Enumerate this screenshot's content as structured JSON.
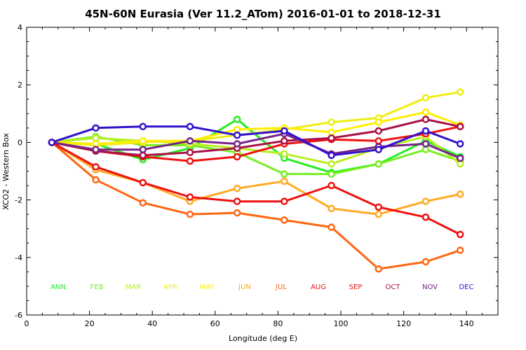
{
  "chart_data": {
    "type": "line",
    "title": "45N-60N Eurasia (Ver 11.2_ATom)   2016-01-01 to 2018-12-31",
    "xlabel": "Longitude (deg E)",
    "ylabel": "XCO2 - Western Box",
    "xlim": [
      0,
      150
    ],
    "ylim": [
      -6,
      4
    ],
    "xticks": [
      0,
      20,
      40,
      60,
      80,
      100,
      120,
      140
    ],
    "yticks": [
      -6,
      -4,
      -2,
      0,
      2,
      4
    ],
    "x": [
      8,
      22,
      37,
      52,
      67,
      82,
      97,
      112,
      127,
      138
    ],
    "series": [
      {
        "name": "ANN",
        "color": "#22ee22",
        "values": [
          0,
          -0.05,
          -0.6,
          -0.2,
          0.8,
          -0.55,
          -1.05,
          -0.75,
          0.05,
          -0.5
        ]
      },
      {
        "name": "FEB",
        "color": "#77ee22",
        "values": [
          0,
          0.2,
          -0.1,
          -0.1,
          -0.35,
          -1.1,
          -1.1,
          -0.75,
          -0.25,
          -0.65
        ]
      },
      {
        "name": "MAR",
        "color": "#bbee22",
        "values": [
          0,
          0.15,
          0.05,
          -0.05,
          -0.2,
          -0.4,
          -0.75,
          -0.2,
          0.2,
          -0.75
        ]
      },
      {
        "name": "APR",
        "color": "#eeee11",
        "values": [
          0,
          -0.1,
          0.0,
          0.05,
          0.25,
          0.45,
          0.7,
          0.85,
          1.55,
          1.75
        ]
      },
      {
        "name": "MAY",
        "color": "#ffee00",
        "values": [
          0,
          -0.05,
          0.05,
          0.05,
          0.45,
          0.5,
          0.35,
          0.7,
          1.05,
          0.6
        ]
      },
      {
        "name": "JUN",
        "color": "#ffaa22",
        "values": [
          0,
          -0.95,
          -1.4,
          -2.05,
          -1.6,
          -1.35,
          -2.3,
          -2.5,
          -2.05,
          -1.8
        ]
      },
      {
        "name": "JUL",
        "color": "#ff6611",
        "values": [
          0,
          -1.3,
          -2.1,
          -2.5,
          -2.45,
          -2.7,
          -2.95,
          -4.4,
          -4.15,
          -3.75
        ]
      },
      {
        "name": "AUG",
        "color": "#ee1111",
        "values": [
          0,
          -0.85,
          -1.4,
          -1.9,
          -2.05,
          -2.05,
          -1.5,
          -2.25,
          -2.6,
          -3.2
        ]
      },
      {
        "name": "SEP",
        "color": "#ee1111",
        "values": [
          0,
          -0.3,
          -0.5,
          -0.65,
          -0.5,
          -0.05,
          0.1,
          0.05,
          0.3,
          0.55
        ]
      },
      {
        "name": "OCT",
        "color": "#aa1144",
        "values": [
          0,
          -0.3,
          -0.45,
          -0.35,
          -0.2,
          0.05,
          0.15,
          0.4,
          0.8,
          0.55
        ]
      },
      {
        "name": "NOV",
        "color": "#772288",
        "values": [
          0,
          -0.25,
          -0.25,
          0.05,
          -0.05,
          0.3,
          -0.4,
          -0.15,
          -0.05,
          -0.55
        ]
      },
      {
        "name": "DEC",
        "color": "#3311cc",
        "values": [
          0,
          0.5,
          0.55,
          0.55,
          0.25,
          0.4,
          -0.45,
          -0.25,
          0.4,
          -0.05
        ]
      }
    ],
    "legend": [
      {
        "label": "ANN",
        "color": "#22ee22"
      },
      {
        "label": "FEB",
        "color": "#77ee22"
      },
      {
        "label": "MAR",
        "color": "#bbee22"
      },
      {
        "label": "APR",
        "color": "#eeee11"
      },
      {
        "label": "MAY",
        "color": "#ffee00"
      },
      {
        "label": "JUN",
        "color": "#ffaa22"
      },
      {
        "label": "JUL",
        "color": "#ff6611"
      },
      {
        "label": "AUG",
        "color": "#ee1111"
      },
      {
        "label": "SEP",
        "color": "#ee1111"
      },
      {
        "label": "OCT",
        "color": "#aa1144"
      },
      {
        "label": "NOV",
        "color": "#772288"
      },
      {
        "label": "DEC",
        "color": "#3311cc"
      }
    ],
    "legend_placement": "bottom, inside plot",
    "grid": false
  }
}
